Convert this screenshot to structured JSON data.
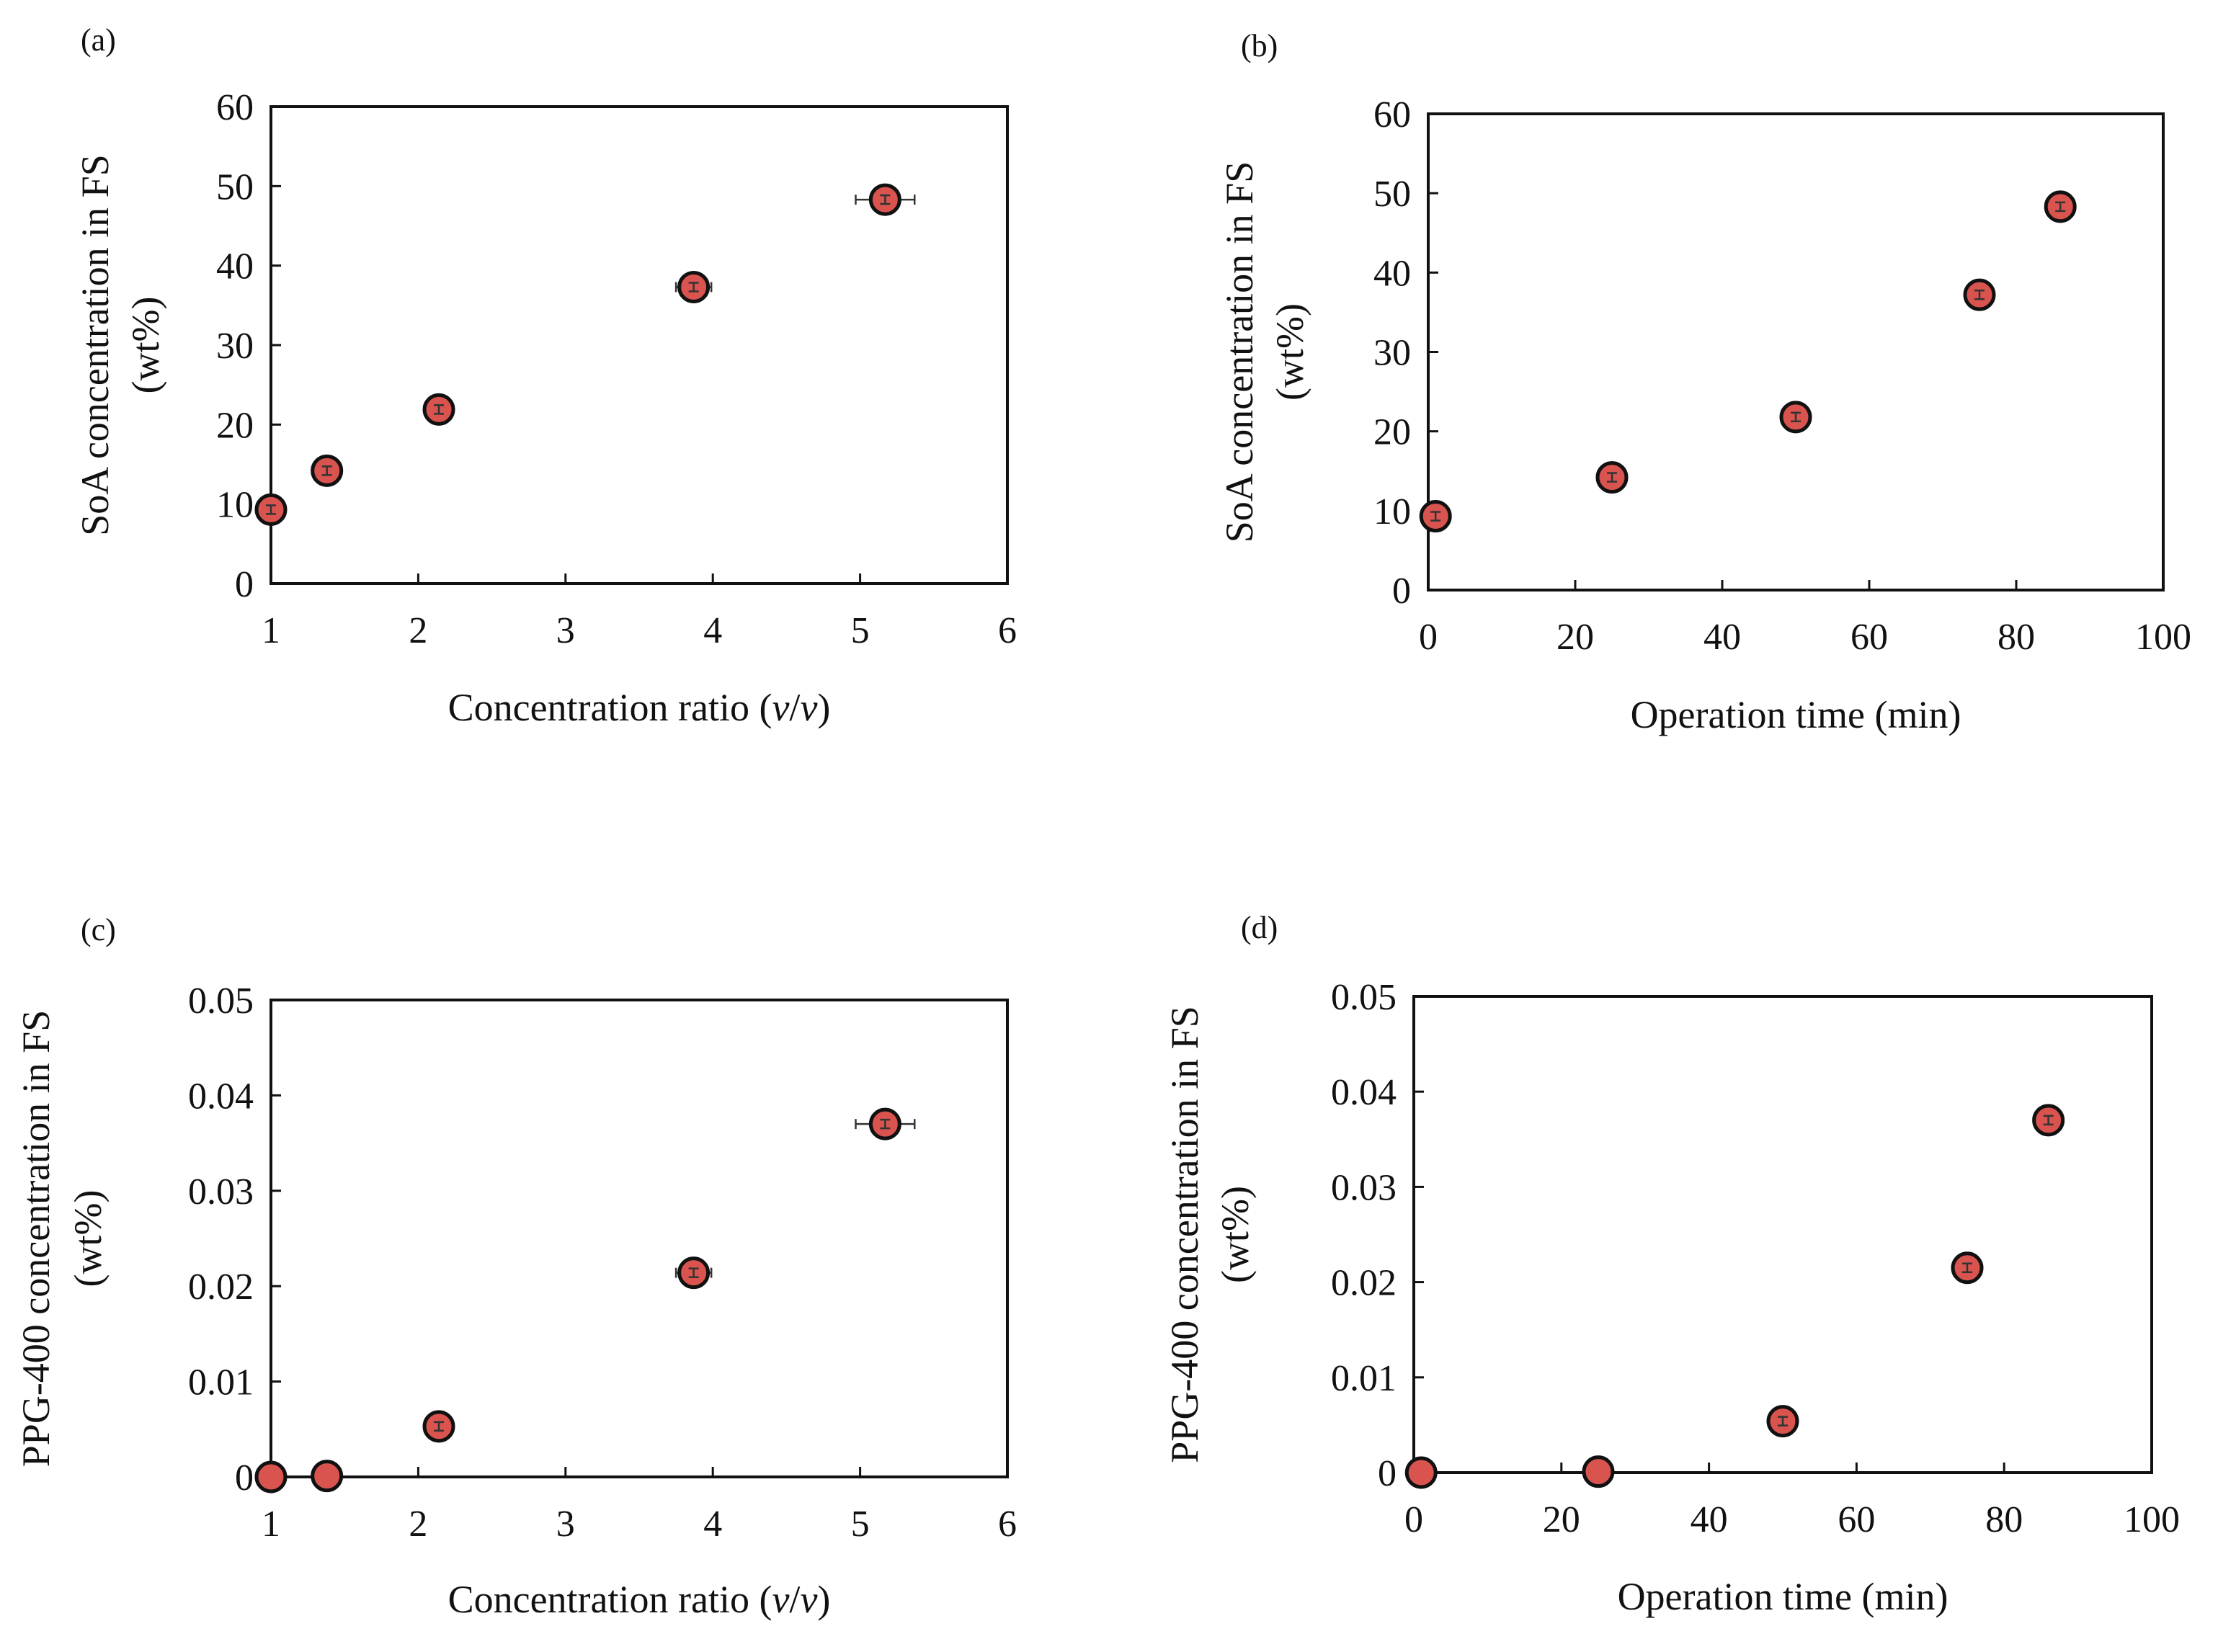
{
  "colors": {
    "marker_fill": "#d9534f",
    "marker_stroke": "#111111",
    "axis": "#111111",
    "errorbar": "#333333"
  },
  "chart_data": [
    {
      "type": "scatter",
      "panel_label": "(a)",
      "xlabel": "Concentration ratio (v/v)",
      "xlabel_parts": {
        "prefix": "Concentration ratio (",
        "v1": "v",
        "slash": "/",
        "v2": "v",
        "suffix": ")"
      },
      "ylabel_line1": "SoA concentration in FS",
      "ylabel_line2": "(wt%)",
      "xlim": [
        1,
        6
      ],
      "ylim": [
        0,
        60
      ],
      "xticks": [
        "1",
        "2",
        "3",
        "4",
        "5",
        "6"
      ],
      "yticks": [
        "0",
        "10",
        "20",
        "30",
        "40",
        "50",
        "60"
      ],
      "points": [
        {
          "x": 1.0,
          "y": 9.3,
          "xerr": 0.0,
          "yerr": 0.4
        },
        {
          "x": 1.38,
          "y": 14.2,
          "xerr": 0.02,
          "yerr": 0.4
        },
        {
          "x": 2.14,
          "y": 21.9,
          "xerr": 0.03,
          "yerr": 0.4
        },
        {
          "x": 3.87,
          "y": 37.3,
          "xerr": 0.12,
          "yerr": 0.5
        },
        {
          "x": 5.17,
          "y": 48.3,
          "xerr": 0.2,
          "yerr": 0.6
        }
      ]
    },
    {
      "type": "scatter",
      "panel_label": "(b)",
      "xlabel": "Operation time (min)",
      "ylabel_line1": "SoA concentration in FS",
      "ylabel_line2": "(wt%)",
      "xlim": [
        0,
        100
      ],
      "ylim": [
        0,
        60
      ],
      "xticks": [
        "0",
        "20",
        "40",
        "60",
        "80",
        "100"
      ],
      "yticks": [
        "0",
        "10",
        "20",
        "30",
        "40",
        "50",
        "60"
      ],
      "points": [
        {
          "x": 1,
          "y": 9.3,
          "xerr": 0,
          "yerr": 0.4
        },
        {
          "x": 25,
          "y": 14.2,
          "xerr": 0,
          "yerr": 0.4
        },
        {
          "x": 50,
          "y": 21.8,
          "xerr": 0,
          "yerr": 0.4
        },
        {
          "x": 75,
          "y": 37.2,
          "xerr": 0,
          "yerr": 0.5
        },
        {
          "x": 86,
          "y": 48.3,
          "xerr": 0,
          "yerr": 0.8
        }
      ]
    },
    {
      "type": "scatter",
      "panel_label": "(c)",
      "xlabel": "Concentration ratio (v/v)",
      "xlabel_parts": {
        "prefix": "Concentration ratio (",
        "v1": "v",
        "slash": "/",
        "v2": "v",
        "suffix": ")"
      },
      "ylabel_line1": "PPG-400 concentration in FS",
      "ylabel_line2": "(wt%)",
      "xlim": [
        1,
        6
      ],
      "ylim": [
        0,
        0.05
      ],
      "xticks": [
        "1",
        "2",
        "3",
        "4",
        "5",
        "6"
      ],
      "yticks": [
        "0",
        "0.01",
        "0.02",
        "0.03",
        "0.04",
        "0.05"
      ],
      "points": [
        {
          "x": 1.0,
          "y": 0.0,
          "xerr": 0.0,
          "yerr": 0.0
        },
        {
          "x": 1.38,
          "y": 0.0001,
          "xerr": 0.02,
          "yerr": 0.0
        },
        {
          "x": 2.14,
          "y": 0.0053,
          "xerr": 0.03,
          "yerr": 0.0002
        },
        {
          "x": 3.87,
          "y": 0.0214,
          "xerr": 0.12,
          "yerr": 0.0004
        },
        {
          "x": 5.17,
          "y": 0.037,
          "xerr": 0.2,
          "yerr": 0.0012
        }
      ]
    },
    {
      "type": "scatter",
      "panel_label": "(d)",
      "xlabel": "Operation time (min)",
      "ylabel_line1": "PPG-400 concentration in FS",
      "ylabel_line2": "(wt%)",
      "xlim": [
        0,
        100
      ],
      "ylim": [
        0,
        0.05
      ],
      "xticks": [
        "0",
        "20",
        "40",
        "60",
        "80",
        "100"
      ],
      "yticks": [
        "0",
        "0.01",
        "0.02",
        "0.03",
        "0.04",
        "0.05"
      ],
      "points": [
        {
          "x": 1,
          "y": 0.0,
          "xerr": 0,
          "yerr": 0.0
        },
        {
          "x": 25,
          "y": 0.0001,
          "xerr": 0,
          "yerr": 0.0
        },
        {
          "x": 50,
          "y": 0.0054,
          "xerr": 0,
          "yerr": 0.0002
        },
        {
          "x": 75,
          "y": 0.0215,
          "xerr": 0,
          "yerr": 0.0004
        },
        {
          "x": 86,
          "y": 0.037,
          "xerr": 0,
          "yerr": 0.0013
        }
      ]
    }
  ]
}
